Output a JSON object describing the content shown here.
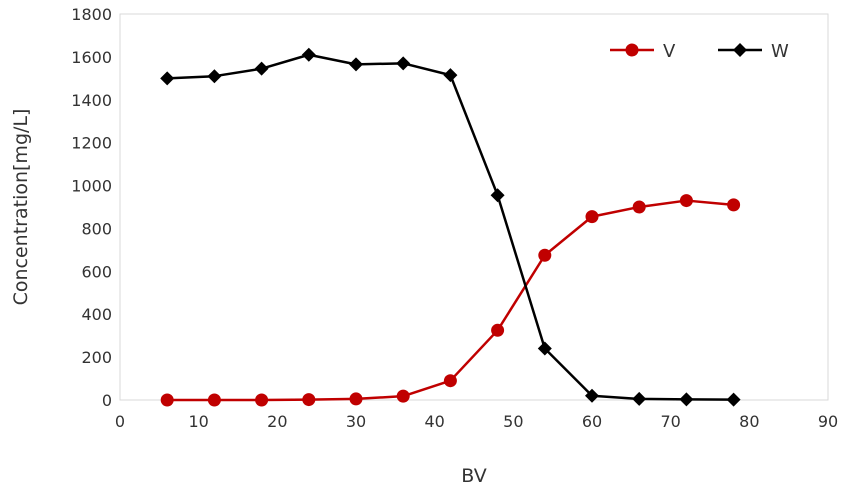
{
  "chart_data": {
    "type": "line",
    "title": "",
    "xlabel": "BV",
    "ylabel": "Concentration[mg/L]",
    "xlim": [
      0,
      90
    ],
    "ylim": [
      0,
      1800
    ],
    "x_ticks": [
      0,
      10,
      20,
      30,
      40,
      50,
      60,
      70,
      80,
      90
    ],
    "y_ticks": [
      0,
      200,
      400,
      600,
      800,
      1000,
      1200,
      1400,
      1600,
      1800
    ],
    "grid": false,
    "legend_position": "top-right",
    "series": [
      {
        "name": "V",
        "color": "#c00000",
        "marker": "circle",
        "x": [
          6,
          12,
          18,
          24,
          30,
          36,
          42,
          48,
          54,
          60,
          66,
          72,
          78
        ],
        "y": [
          0,
          0,
          0,
          2,
          5,
          18,
          90,
          325,
          675,
          855,
          900,
          930,
          910
        ]
      },
      {
        "name": "W",
        "color": "#000000",
        "marker": "diamond",
        "x": [
          6,
          12,
          18,
          24,
          30,
          36,
          42,
          48,
          54,
          60,
          66,
          72,
          78
        ],
        "y": [
          1500,
          1510,
          1545,
          1610,
          1565,
          1570,
          1515,
          955,
          240,
          20,
          5,
          3,
          2
        ]
      }
    ]
  }
}
